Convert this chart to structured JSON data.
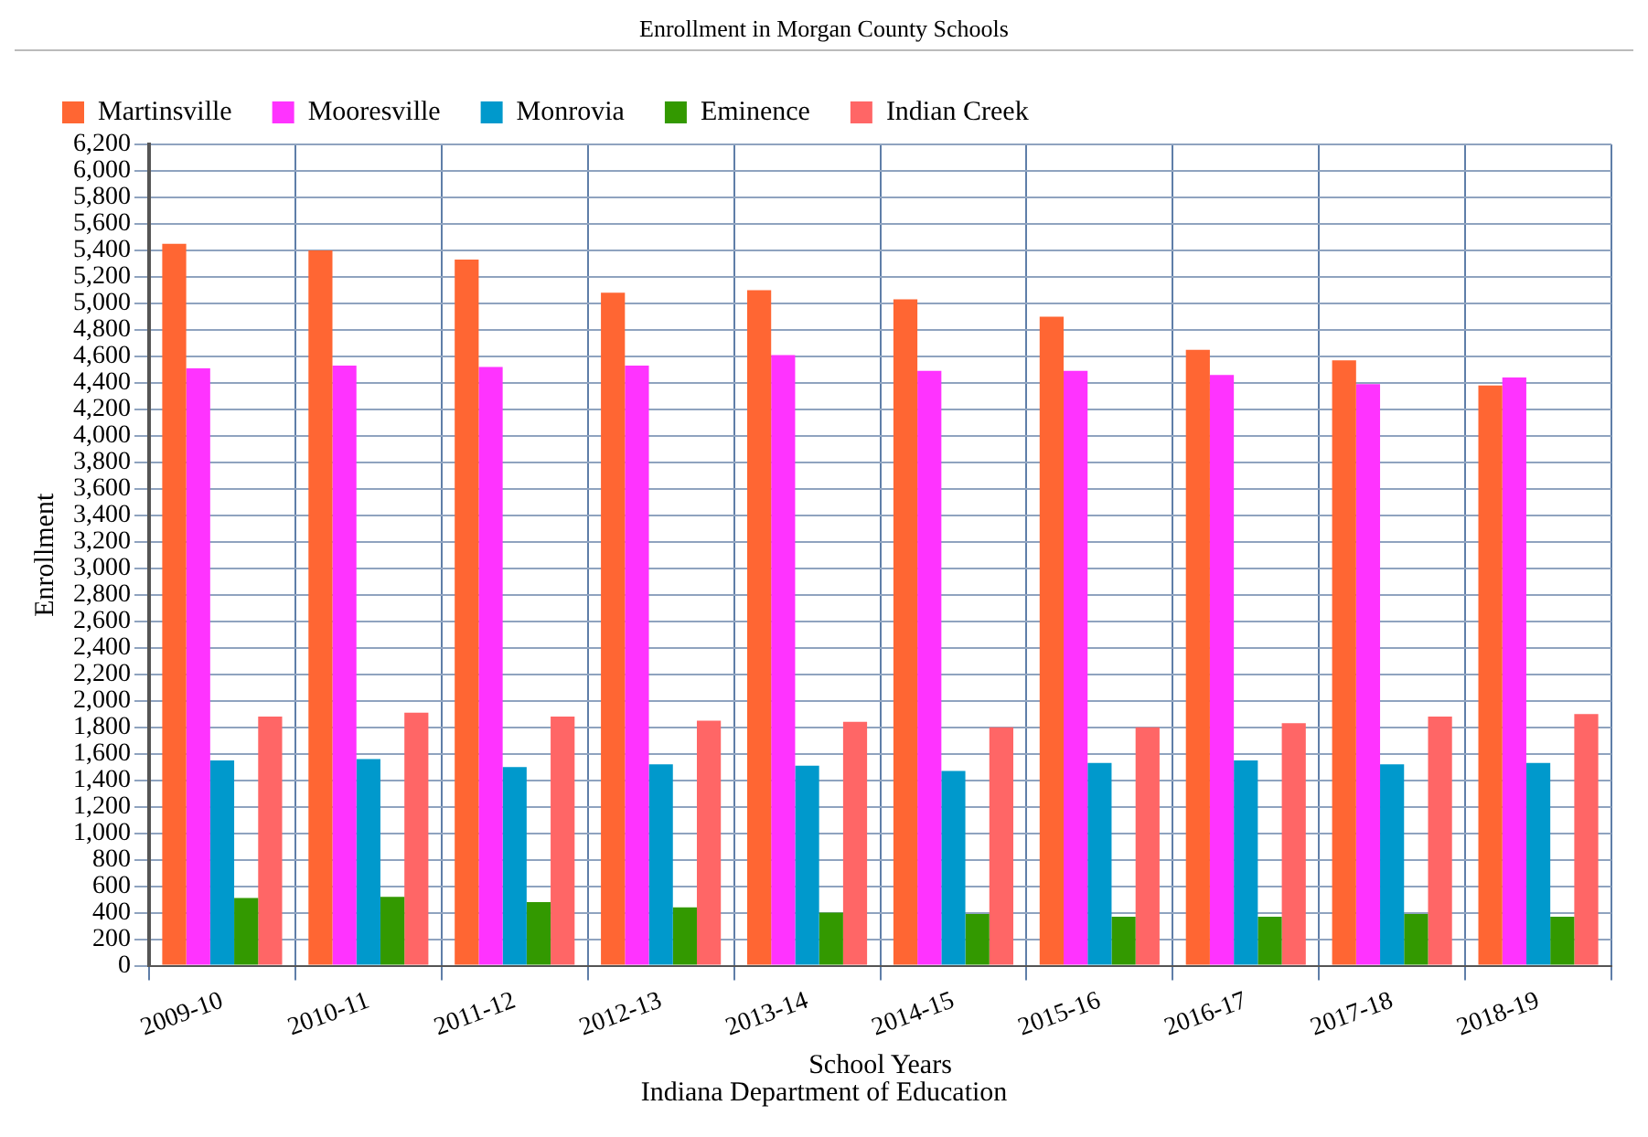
{
  "chart_data": {
    "type": "bar",
    "title": "Enrollment in Morgan County Schools",
    "xlabel": "School Years",
    "ylabel": "Enrollment",
    "annotations": [
      "Indiana Department of Education"
    ],
    "categories": [
      "2009-10",
      "2010-11",
      "2011-12",
      "2012-13",
      "2013-14",
      "2014-15",
      "2015-16",
      "2016-17",
      "2017-18",
      "2018-19"
    ],
    "series": [
      {
        "name": "Martinsville",
        "color": "#ff6633",
        "values": [
          5450,
          5400,
          5330,
          5080,
          5100,
          5030,
          4900,
          4650,
          4570,
          4380
        ]
      },
      {
        "name": "Mooresville",
        "color": "#ff33ff",
        "values": [
          4510,
          4530,
          4520,
          4530,
          4610,
          4490,
          4490,
          4460,
          4390,
          4440
        ]
      },
      {
        "name": "Monrovia",
        "color": "#0099cc",
        "values": [
          1550,
          1560,
          1500,
          1520,
          1510,
          1470,
          1530,
          1550,
          1520,
          1530
        ]
      },
      {
        "name": "Eminence",
        "color": "#339900",
        "values": [
          510,
          520,
          480,
          440,
          400,
          390,
          370,
          370,
          390,
          370
        ]
      },
      {
        "name": "Indian Creek",
        "color": "#ff6666",
        "values": [
          1880,
          1910,
          1880,
          1850,
          1840,
          1800,
          1800,
          1830,
          1880,
          1900
        ]
      }
    ],
    "ylim": [
      0,
      6200
    ],
    "yticks": [
      0,
      200,
      400,
      600,
      800,
      {
        "value": 1000,
        "label": "1,000"
      },
      {
        "value": 1200,
        "label": "1,200"
      },
      {
        "value": 1400,
        "label": "1,400"
      },
      {
        "value": 1600,
        "label": "1,600"
      },
      {
        "value": 1800,
        "label": "1,800"
      },
      {
        "value": 2000,
        "label": "2,000"
      },
      {
        "value": 2200,
        "label": "2,200"
      },
      {
        "value": 2400,
        "label": "2,400"
      },
      {
        "value": 2600,
        "label": "2,600"
      },
      {
        "value": 2800,
        "label": "2,800"
      },
      {
        "value": 3000,
        "label": "3,000"
      },
      {
        "value": 3200,
        "label": "3,200"
      },
      {
        "value": 3400,
        "label": "3,400"
      },
      {
        "value": 3600,
        "label": "3,600"
      },
      {
        "value": 3800,
        "label": "3,800"
      },
      {
        "value": 4000,
        "label": "4,000"
      },
      {
        "value": 4200,
        "label": "4,200"
      },
      {
        "value": 4400,
        "label": "4,400"
      },
      {
        "value": 4600,
        "label": "4,600"
      },
      {
        "value": 4800,
        "label": "4,800"
      },
      {
        "value": 5000,
        "label": "5,000"
      },
      {
        "value": 5200,
        "label": "5,200"
      },
      {
        "value": 5400,
        "label": "5,400"
      },
      {
        "value": 5600,
        "label": "5,600"
      },
      {
        "value": 5800,
        "label": "5,800"
      },
      {
        "value": 6000,
        "label": "6,000"
      },
      {
        "value": 6200,
        "label": "6,200"
      }
    ],
    "grid": true,
    "legend": "top left"
  }
}
